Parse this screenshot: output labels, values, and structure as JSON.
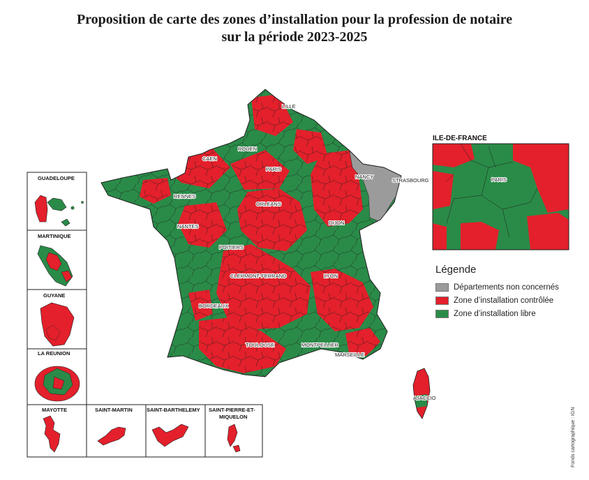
{
  "title": {
    "line1": "Proposition de carte des zones d’installation pour la profession de notaire",
    "line2": "sur la période 2023-2025"
  },
  "colors": {
    "controlled": "#e3202b",
    "free": "#2a8b48",
    "not_concerned": "#9b9b9b",
    "border": "#1f1f1f"
  },
  "cities": [
    "LILLE",
    "ROUEN",
    "CAEN",
    "PARIS",
    "NANCY",
    "STRASBOURG",
    "RENNES",
    "ORLEANS",
    "NANTES",
    "DIJON",
    "POITIERS",
    "CLERMONT-FERRAND",
    "LYON",
    "BORDEAUX",
    "TOULOUSE",
    "MONTPELLIER",
    "MARSEILLE",
    "AJACCIO"
  ],
  "insets": {
    "idf_title": "ILE-DE-FRANCE",
    "idf_city": "PARIS",
    "guadeloupe": "GUADELOUPE",
    "martinique": "MARTINIQUE",
    "guyane": "GUYANE",
    "reunion": "LA REUNION",
    "mayotte": "MAYOTTE",
    "saint_martin": "SAINT-MARTIN",
    "saint_barthelemy": "SAINT-BARTHELEMY",
    "spm_line1": "SAINT-PIERRE-ET-",
    "spm_line2": "MIQUELON"
  },
  "legend": {
    "title": "Légende",
    "items": [
      {
        "label": "Départements non concernés",
        "color": "#9b9b9b"
      },
      {
        "label": "Zone d’installation contrôlée",
        "color": "#e3202b"
      },
      {
        "label": "Zone d’installation libre",
        "color": "#2a8b48"
      }
    ]
  },
  "credit": "Fonds cartographique : IGN"
}
